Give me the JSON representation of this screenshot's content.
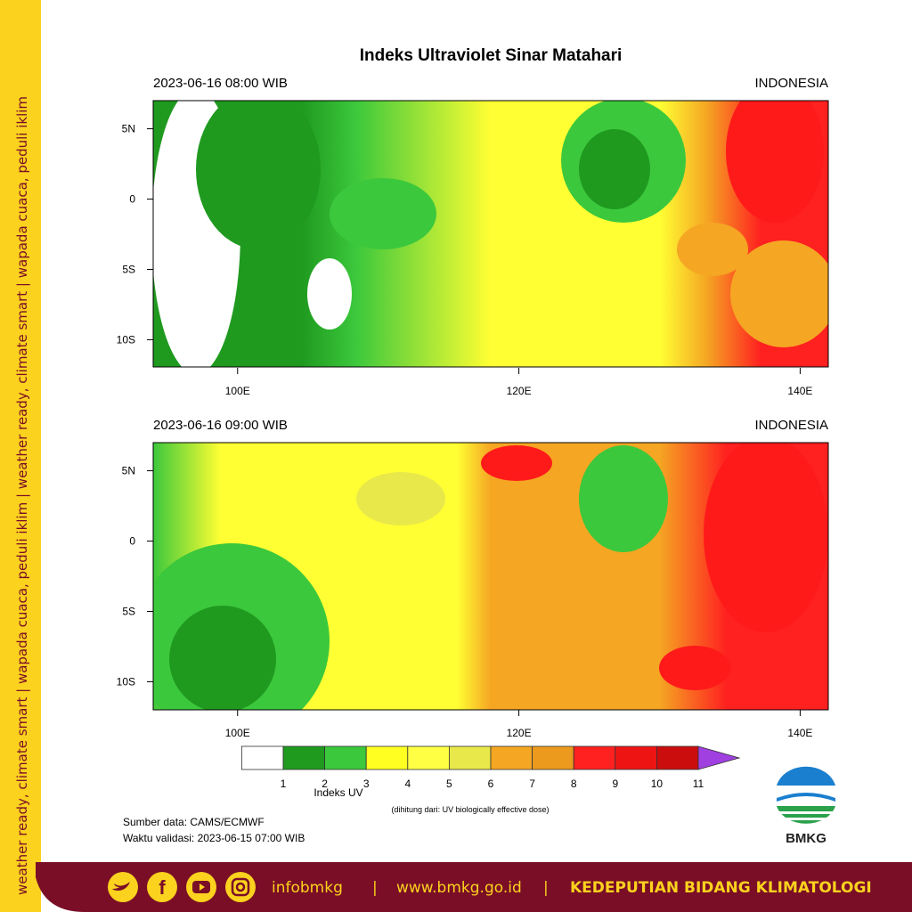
{
  "sidebar": "weather ready, climate smart  |  wapada cuaca, peduli iklim  |  weather ready, climate smart  |  wapada cuaca, peduli iklim",
  "title": "Indeks Ultraviolet Sinar Matahari",
  "map": {
    "lon_range": [
      94,
      142
    ],
    "lat_range": [
      -12,
      7
    ],
    "lon_ticks": [
      {
        "value": 100,
        "label": "100E"
      },
      {
        "value": 120,
        "label": "120E"
      },
      {
        "value": 140,
        "label": "140E"
      }
    ],
    "lat_ticks": [
      {
        "value": 5,
        "label": "5N"
      },
      0,
      {
        "value": -5,
        "label": "5S"
      },
      {
        "value": -10,
        "label": "10S"
      }
    ]
  },
  "panels": [
    {
      "time": "2023-06-16  08:00 WIB",
      "region": "INDONESIA"
    },
    {
      "time": "2023-06-16  09:00 WIB",
      "region": "INDONESIA"
    }
  ],
  "legend": {
    "ticks": [
      1,
      2,
      3,
      4,
      5,
      6,
      7,
      8,
      9,
      10,
      11
    ],
    "colors": [
      "#ffffff",
      "#1f9a1f",
      "#3cc83c",
      "#ffff22",
      "#ffff44",
      "#e8e84a",
      "#f5a623",
      "#eb9a1e",
      "#ff2020",
      "#ee1414",
      "#cc0d0d"
    ],
    "over_color": "#a040e0",
    "title": "Indeks UV",
    "subtitle": "(dihitung dari: UV biologically effective dose)"
  },
  "source": "Sumber data: CAMS/ECMWF",
  "validity": "Waktu validasi: 2023-06-15 07:00 WIB",
  "logo": "BMKG",
  "footer": {
    "handle": "infobmkg",
    "separator": "|",
    "website": "www.bmkg.go.id",
    "separator2": "|",
    "department": "KEDEPUTIAN BIDANG KLIMATOLOGI"
  }
}
